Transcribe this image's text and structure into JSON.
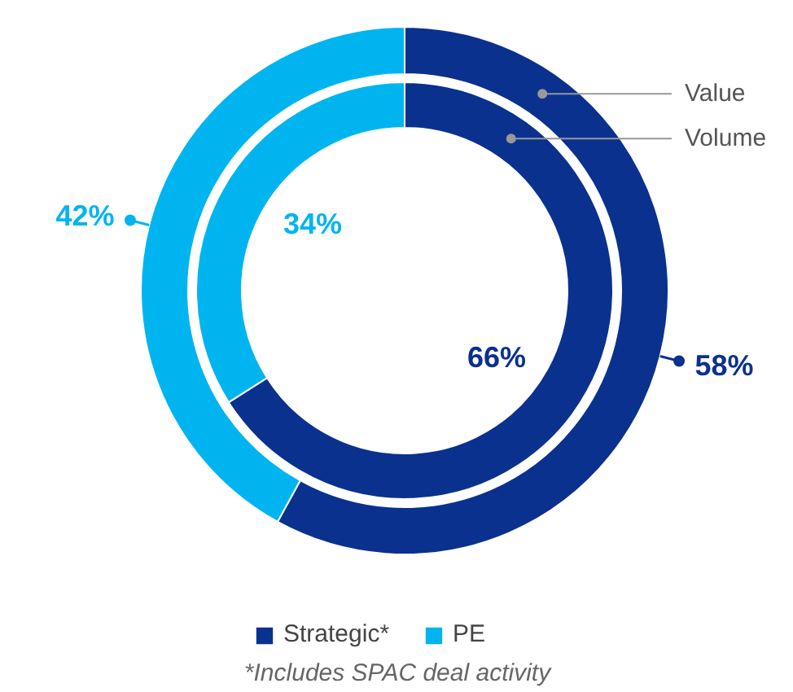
{
  "chart_data": {
    "type": "donut",
    "categories": [
      "Strategic*",
      "PE"
    ],
    "colors": [
      "#0b318f",
      "#00b5ef"
    ],
    "series": [
      {
        "name": "Value",
        "values": [
          58,
          42
        ],
        "value_labels": [
          "58%",
          "42%"
        ]
      },
      {
        "name": "Volume",
        "values": [
          66,
          34
        ],
        "value_labels": [
          "66%",
          "34%"
        ]
      }
    ],
    "legend": "bottom",
    "annotations": [
      "*Includes SPAC deal activity"
    ]
  }
}
